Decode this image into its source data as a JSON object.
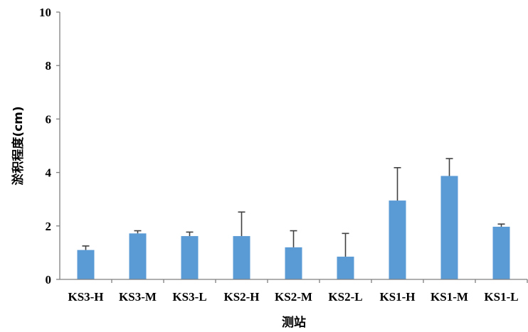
{
  "chart_data": {
    "type": "bar",
    "categories": [
      "KS3-H",
      "KS3-M",
      "KS3-L",
      "KS2-H",
      "KS2-M",
      "KS2-L",
      "KS1-H",
      "KS1-M",
      "KS1-L"
    ],
    "values": [
      1.1,
      1.72,
      1.62,
      1.62,
      1.2,
      0.85,
      2.95,
      3.87,
      1.97
    ],
    "error_plus": [
      0.15,
      0.1,
      0.15,
      0.9,
      0.62,
      0.87,
      1.23,
      0.65,
      0.1
    ],
    "title": "",
    "xlabel": "测站",
    "ylabel": "淤积程度(cm)",
    "ylim": [
      0,
      10
    ],
    "yticks": [
      "0",
      "2",
      "4",
      "6",
      "8",
      "10"
    ],
    "bar_color": "#5b9bd5",
    "error_color": "#404040",
    "grid": false,
    "legend": "none"
  }
}
